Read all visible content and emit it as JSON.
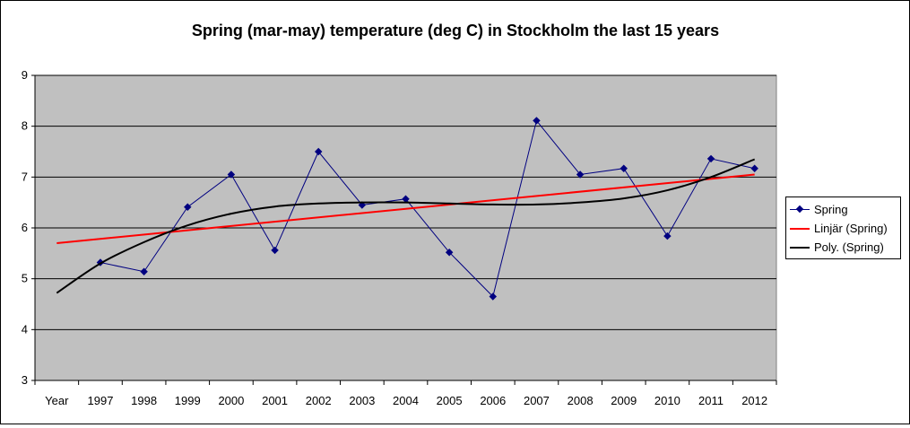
{
  "chart_data": {
    "type": "line",
    "title": "Spring (mar-may) temperature (deg C) in Stockholm the last 15 years",
    "xlabel": "",
    "ylabel": "",
    "ylim": [
      3,
      9
    ],
    "y_ticks": [
      "3",
      "4",
      "5",
      "6",
      "7",
      "8",
      "9"
    ],
    "categories": [
      "Year",
      "1997",
      "1998",
      "1999",
      "2000",
      "2001",
      "2002",
      "2003",
      "2004",
      "2005",
      "2006",
      "2007",
      "2008",
      "2009",
      "2010",
      "2011",
      "2012"
    ],
    "grid": true,
    "legend_position": "right",
    "series": [
      {
        "name": "Spring",
        "type": "line-markers",
        "color": "#000080",
        "x": [
          "1997",
          "1998",
          "1999",
          "2000",
          "2001",
          "2002",
          "2003",
          "2004",
          "2005",
          "2006",
          "2007",
          "2008",
          "2009",
          "2010",
          "2011",
          "2012"
        ],
        "values": [
          5.32,
          5.14,
          6.41,
          7.05,
          5.56,
          7.5,
          6.45,
          6.57,
          5.52,
          4.65,
          8.11,
          7.05,
          7.17,
          5.84,
          7.36,
          7.17
        ]
      },
      {
        "name": "Linjär (Spring)",
        "type": "trendline-linear",
        "color": "#ff0000",
        "x": [
          "Year",
          "2012"
        ],
        "values": [
          5.7,
          7.05
        ]
      },
      {
        "name": "Poly. (Spring)",
        "type": "trendline-polynomial",
        "color": "#000000",
        "x": [
          "Year",
          "1997",
          "1998",
          "1999",
          "2000",
          "2001",
          "2002",
          "2003",
          "2004",
          "2005",
          "2006",
          "2007",
          "2008",
          "2009",
          "2010",
          "2011",
          "2012"
        ],
        "values": [
          4.72,
          5.3,
          5.72,
          6.05,
          6.28,
          6.42,
          6.48,
          6.5,
          6.5,
          6.48,
          6.46,
          6.46,
          6.5,
          6.58,
          6.74,
          7.0,
          7.35
        ]
      }
    ]
  }
}
